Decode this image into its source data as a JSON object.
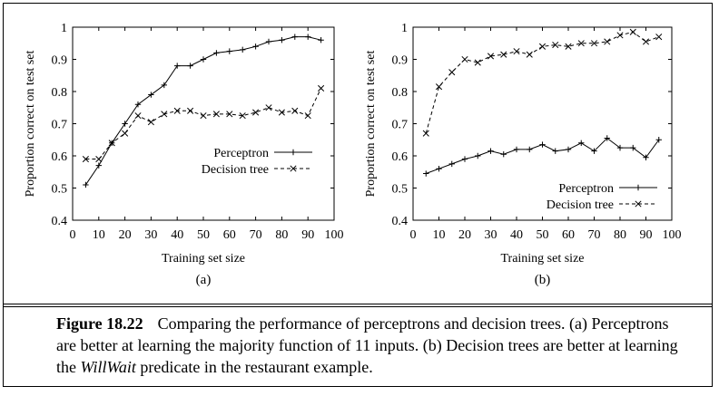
{
  "chart_data": [
    {
      "type": "line",
      "panel_label": "(a)",
      "xlabel": "Training set size",
      "ylabel": "Proportion correct on test set",
      "xlim": [
        0,
        100
      ],
      "ylim": [
        0.4,
        1
      ],
      "xticks": [
        0,
        10,
        20,
        30,
        40,
        50,
        60,
        70,
        80,
        90,
        100
      ],
      "yticks": [
        0.4,
        0.5,
        0.6,
        0.7,
        0.8,
        0.9,
        1
      ],
      "ytick_labels": [
        "0.4",
        "0.5",
        "0.6",
        "0.7",
        "0.8",
        "0.9",
        "1"
      ],
      "grid": false,
      "legend_position": "center-right",
      "x": [
        5,
        10,
        15,
        20,
        25,
        30,
        35,
        40,
        45,
        50,
        55,
        60,
        65,
        70,
        75,
        80,
        85,
        90,
        95
      ],
      "series": [
        {
          "name": "Perceptron",
          "marker": "plus",
          "dash": "solid",
          "values": [
            0.51,
            0.57,
            0.64,
            0.7,
            0.76,
            0.79,
            0.82,
            0.88,
            0.88,
            0.9,
            0.92,
            0.925,
            0.93,
            0.94,
            0.955,
            0.96,
            0.97,
            0.97,
            0.96
          ]
        },
        {
          "name": "Decision tree",
          "marker": "cross",
          "dash": "dashed",
          "values": [
            0.59,
            0.59,
            0.64,
            0.67,
            0.725,
            0.705,
            0.73,
            0.74,
            0.74,
            0.725,
            0.73,
            0.73,
            0.725,
            0.735,
            0.75,
            0.735,
            0.74,
            0.725,
            0.81
          ]
        }
      ]
    },
    {
      "type": "line",
      "panel_label": "(b)",
      "xlabel": "Training set size",
      "ylabel": "Proportion correct on test set",
      "xlim": [
        0,
        100
      ],
      "ylim": [
        0.4,
        1
      ],
      "xticks": [
        0,
        10,
        20,
        30,
        40,
        50,
        60,
        70,
        80,
        90,
        100
      ],
      "yticks": [
        0.4,
        0.5,
        0.6,
        0.7,
        0.8,
        0.9,
        1
      ],
      "ytick_labels": [
        "0.4",
        "0.5",
        "0.6",
        "0.7",
        "0.8",
        "0.9",
        "1"
      ],
      "grid": false,
      "legend_position": "bottom-right",
      "x": [
        5,
        10,
        15,
        20,
        25,
        30,
        35,
        40,
        45,
        50,
        55,
        60,
        65,
        70,
        75,
        80,
        85,
        90,
        95
      ],
      "series": [
        {
          "name": "Perceptron",
          "marker": "plus",
          "dash": "solid",
          "values": [
            0.545,
            0.56,
            0.575,
            0.59,
            0.6,
            0.615,
            0.605,
            0.62,
            0.62,
            0.635,
            0.615,
            0.62,
            0.64,
            0.615,
            0.655,
            0.625,
            0.625,
            0.595,
            0.65
          ]
        },
        {
          "name": "Decision tree",
          "marker": "cross",
          "dash": "dashed",
          "values": [
            0.67,
            0.815,
            0.86,
            0.9,
            0.89,
            0.91,
            0.915,
            0.925,
            0.915,
            0.94,
            0.945,
            0.94,
            0.95,
            0.95,
            0.955,
            0.975,
            0.985,
            0.955,
            0.97
          ]
        }
      ]
    }
  ],
  "caption": {
    "figure_label": "Figure 18.22",
    "text_1": "Comparing the performance of perceptrons and decision trees. (a) Perceptrons are better at learning the majority function of 11 inputs. (b) Decision trees are better at learning the ",
    "math": "WillWait",
    "text_2": " predicate in the restaurant example."
  }
}
